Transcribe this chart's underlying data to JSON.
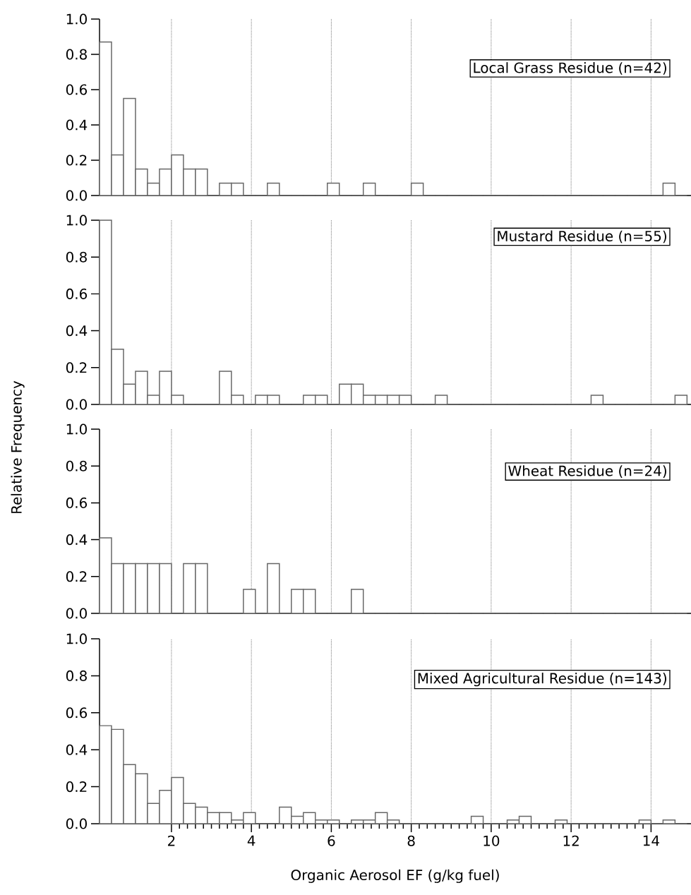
{
  "chart_data": [
    {
      "type": "histogram",
      "title": "Local Grass Residue (n=42)",
      "color": "#666666",
      "bins": [
        0.2,
        0.5,
        0.8,
        1.1,
        1.4,
        1.7,
        2.0,
        2.3,
        2.6,
        2.9,
        3.2,
        3.5,
        3.8,
        4.1,
        4.4,
        4.7,
        5.0,
        5.3,
        5.6,
        5.9,
        6.2,
        6.5,
        6.8,
        7.1,
        7.4,
        7.7,
        8.0,
        8.3,
        8.6,
        8.9,
        9.2,
        9.5,
        9.8,
        10.1,
        10.4,
        10.7,
        11.0,
        11.3,
        11.6,
        11.9,
        12.2,
        12.5,
        12.8,
        13.1,
        13.4,
        13.7,
        14.0,
        14.3,
        14.6,
        14.9
      ],
      "values": [
        0.87,
        0.23,
        0.55,
        0.15,
        0.07,
        0.15,
        0.23,
        0.15,
        0.15,
        0,
        0.07,
        0.07,
        0,
        0,
        0.07,
        0,
        0,
        0,
        0,
        0.07,
        0,
        0,
        0.07,
        0,
        0,
        0,
        0.07,
        0,
        0,
        0,
        0,
        0,
        0,
        0,
        0,
        0,
        0,
        0,
        0,
        0,
        0,
        0,
        0,
        0,
        0,
        0,
        0,
        0.07,
        0
      ],
      "xlim": [
        0.2,
        15
      ],
      "ylim": [
        0,
        1.0
      ],
      "xticks": [
        2,
        4,
        6,
        8,
        10,
        12,
        14
      ],
      "yticks": [
        {
          "value": 0,
          "label": "0.0"
        },
        {
          "value": 0.2,
          "label": "0.2"
        },
        {
          "value": 0.4,
          "label": "0.4"
        },
        {
          "value": 0.6,
          "label": "0.6"
        },
        {
          "value": 0.8,
          "label": "0.8"
        },
        {
          "value": 1.0,
          "label": "1.0"
        }
      ],
      "grid": "x",
      "tick_labels": "y"
    },
    {
      "type": "histogram",
      "title": "Mustard Residue (n=55)",
      "ylabel": "Relative Frequency",
      "color": "#666666",
      "bins": [
        0.2,
        0.5,
        0.8,
        1.1,
        1.4,
        1.7,
        2.0,
        2.3,
        2.6,
        2.9,
        3.2,
        3.5,
        3.8,
        4.1,
        4.4,
        4.7,
        5.0,
        5.3,
        5.6,
        5.9,
        6.2,
        6.5,
        6.8,
        7.1,
        7.4,
        7.7,
        8.0,
        8.3,
        8.6,
        8.9,
        9.2,
        9.5,
        9.8,
        10.1,
        10.4,
        10.7,
        11.0,
        11.3,
        11.6,
        11.9,
        12.2,
        12.5,
        12.8,
        13.1,
        13.4,
        13.7,
        14.0,
        14.3,
        14.6,
        14.9
      ],
      "values": [
        1.0,
        0.3,
        0.11,
        0.18,
        0.05,
        0.18,
        0.05,
        0,
        0,
        0,
        0.18,
        0.05,
        0,
        0.05,
        0.05,
        0,
        0,
        0.05,
        0.05,
        0,
        0.11,
        0.11,
        0.05,
        0.05,
        0.05,
        0.05,
        0,
        0,
        0.05,
        0,
        0,
        0,
        0,
        0,
        0,
        0,
        0,
        0,
        0,
        0,
        0,
        0.05,
        0,
        0,
        0,
        0,
        0,
        0,
        0.05
      ],
      "xlim": [
        0.2,
        15
      ],
      "ylim": [
        0,
        1.0
      ],
      "xticks": [
        2,
        4,
        6,
        8,
        10,
        12,
        14
      ],
      "yticks": [
        {
          "value": 0,
          "label": "0.0"
        },
        {
          "value": 0.2,
          "label": "0.2"
        },
        {
          "value": 0.4,
          "label": "0.4"
        },
        {
          "value": 0.6,
          "label": "0.6"
        },
        {
          "value": 0.8,
          "label": "0.8"
        },
        {
          "value": 1.0,
          "label": "1.0"
        }
      ],
      "grid": "x",
      "tick_labels": "y"
    },
    {
      "type": "histogram",
      "title": "Wheat Residue (n=24)",
      "color": "#666666",
      "bins": [
        0.2,
        0.5,
        0.8,
        1.1,
        1.4,
        1.7,
        2.0,
        2.3,
        2.6,
        2.9,
        3.2,
        3.5,
        3.8,
        4.1,
        4.4,
        4.7,
        5.0,
        5.3,
        5.6,
        5.9,
        6.2,
        6.5,
        6.8,
        7.1,
        7.4,
        7.7,
        8.0,
        8.3,
        8.6,
        8.9,
        9.2,
        9.5,
        9.8,
        10.1,
        10.4,
        10.7,
        11.0,
        11.3,
        11.6,
        11.9,
        12.2,
        12.5,
        12.8,
        13.1,
        13.4,
        13.7,
        14.0,
        14.3,
        14.6,
        14.9
      ],
      "values": [
        0.41,
        0.27,
        0.27,
        0.27,
        0.27,
        0.27,
        0,
        0.27,
        0.27,
        0,
        0,
        0,
        0.13,
        0,
        0.27,
        0,
        0.13,
        0.13,
        0,
        0,
        0,
        0.13,
        0,
        0,
        0,
        0,
        0,
        0,
        0,
        0,
        0,
        0,
        0,
        0,
        0,
        0,
        0,
        0,
        0,
        0,
        0,
        0,
        0,
        0,
        0,
        0,
        0,
        0,
        0
      ],
      "xlim": [
        0.2,
        15
      ],
      "ylim": [
        0,
        1.0
      ],
      "xticks": [
        2,
        4,
        6,
        8,
        10,
        12,
        14
      ],
      "yticks": [
        {
          "value": 0,
          "label": "0.0"
        },
        {
          "value": 0.2,
          "label": "0.2"
        },
        {
          "value": 0.4,
          "label": "0.4"
        },
        {
          "value": 0.6,
          "label": "0.6"
        },
        {
          "value": 0.8,
          "label": "0.8"
        },
        {
          "value": 1.0,
          "label": "1.0"
        }
      ],
      "grid": "x",
      "tick_labels": "y"
    },
    {
      "type": "histogram",
      "title": "Mixed Agricultural Residue (n=143)",
      "xlabel": "Organic Aerosol EF (g/kg fuel)",
      "color": "#666666",
      "bins": [
        0.2,
        0.5,
        0.8,
        1.1,
        1.4,
        1.7,
        2.0,
        2.3,
        2.6,
        2.9,
        3.2,
        3.5,
        3.8,
        4.1,
        4.4,
        4.7,
        5.0,
        5.3,
        5.6,
        5.9,
        6.2,
        6.5,
        6.8,
        7.1,
        7.4,
        7.7,
        8.0,
        8.3,
        8.6,
        8.9,
        9.2,
        9.5,
        9.8,
        10.1,
        10.4,
        10.7,
        11.0,
        11.3,
        11.6,
        11.9,
        12.2,
        12.5,
        12.8,
        13.1,
        13.4,
        13.7,
        14.0,
        14.3,
        14.6,
        14.9
      ],
      "values": [
        0.53,
        0.51,
        0.32,
        0.27,
        0.11,
        0.18,
        0.25,
        0.11,
        0.09,
        0.06,
        0.06,
        0.02,
        0.06,
        0,
        0,
        0.09,
        0.04,
        0.06,
        0.02,
        0.02,
        0,
        0.02,
        0.02,
        0.06,
        0.02,
        0,
        0,
        0,
        0,
        0,
        0,
        0.04,
        0,
        0,
        0.02,
        0.04,
        0,
        0,
        0.02,
        0,
        0,
        0,
        0,
        0,
        0,
        0.02,
        0,
        0.02,
        0
      ],
      "xlim": [
        0.2,
        15
      ],
      "ylim": [
        0,
        1.0
      ],
      "xticks": [
        2,
        4,
        6,
        8,
        10,
        12,
        14
      ],
      "yticks": [
        {
          "value": 0,
          "label": "0.0"
        },
        {
          "value": 0.2,
          "label": "0.2"
        },
        {
          "value": 0.4,
          "label": "0.4"
        },
        {
          "value": 0.6,
          "label": "0.6"
        },
        {
          "value": 0.8,
          "label": "0.8"
        },
        {
          "value": 1.0,
          "label": "1.0"
        }
      ],
      "grid": "x"
    }
  ]
}
